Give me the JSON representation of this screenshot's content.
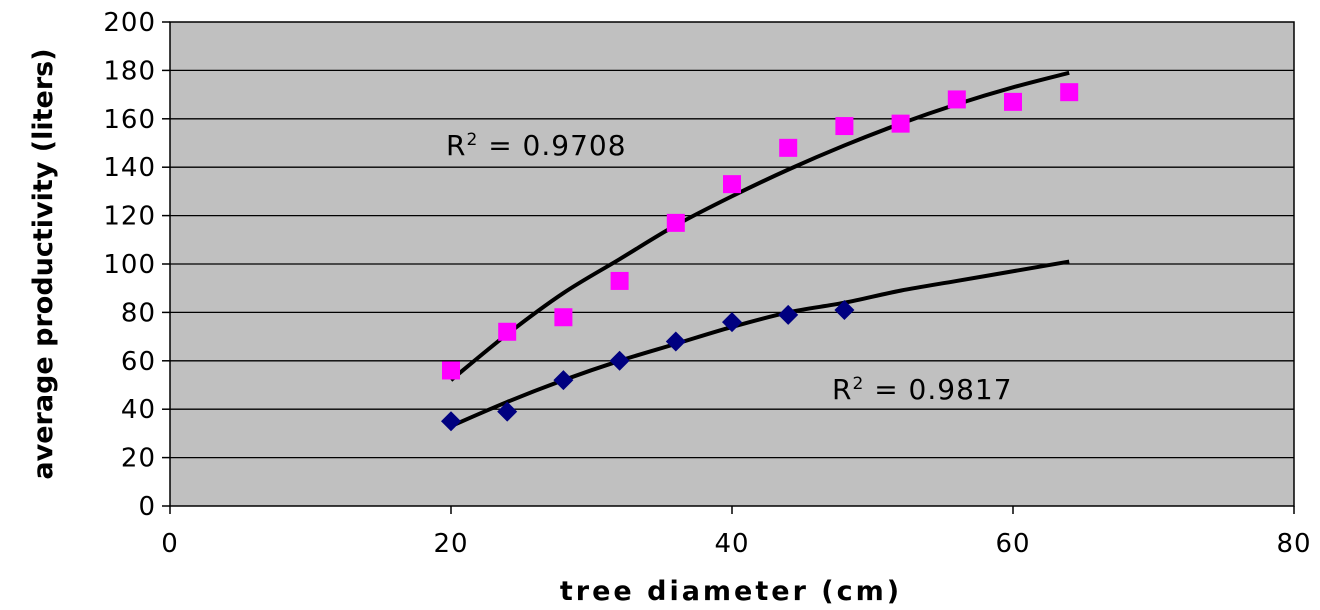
{
  "chart_data": {
    "type": "scatter",
    "title": "",
    "xlabel": "tree diameter (cm)",
    "ylabel": "average productivity (liters)",
    "xlim": [
      0,
      80
    ],
    "ylim": [
      0,
      200
    ],
    "xticks": [
      0,
      20,
      40,
      60,
      80
    ],
    "yticks": [
      0,
      20,
      40,
      60,
      80,
      100,
      120,
      140,
      160,
      180,
      200
    ],
    "grid": "horizontal",
    "legend": "none",
    "plot_background": "#c0c0c0",
    "series": [
      {
        "marker": "square",
        "color": "#ff00ff",
        "x": [
          20,
          24,
          28,
          32,
          36,
          40,
          44,
          48,
          52,
          56,
          60,
          64
        ],
        "y": [
          56,
          72,
          78,
          93,
          117,
          133,
          148,
          157,
          158,
          168,
          167,
          171
        ],
        "trendline": {
          "x": [
            20,
            24,
            28,
            32,
            36,
            40,
            44,
            48,
            52,
            56,
            60,
            64
          ],
          "y": [
            52,
            71,
            88,
            102,
            116,
            128,
            139,
            149,
            158,
            166,
            173,
            179
          ]
        }
      },
      {
        "marker": "diamond",
        "color": "#000080",
        "x": [
          20,
          24,
          28,
          32,
          36,
          40,
          44,
          48
        ],
        "y": [
          35,
          39,
          52,
          60,
          68,
          76,
          79,
          81
        ],
        "trendline": {
          "x": [
            20,
            24,
            28,
            32,
            36,
            40,
            44,
            48,
            52,
            56,
            60,
            64
          ],
          "y": [
            33,
            43,
            52,
            60,
            67,
            74,
            80,
            84,
            89,
            93,
            97,
            101
          ]
        }
      }
    ],
    "annotations": [
      {
        "text_r": "R",
        "text_sup": "2",
        "text_val": " = 0.9708"
      },
      {
        "text_r": "R",
        "text_sup": "2",
        "text_val": " = 0.9817"
      }
    ]
  }
}
